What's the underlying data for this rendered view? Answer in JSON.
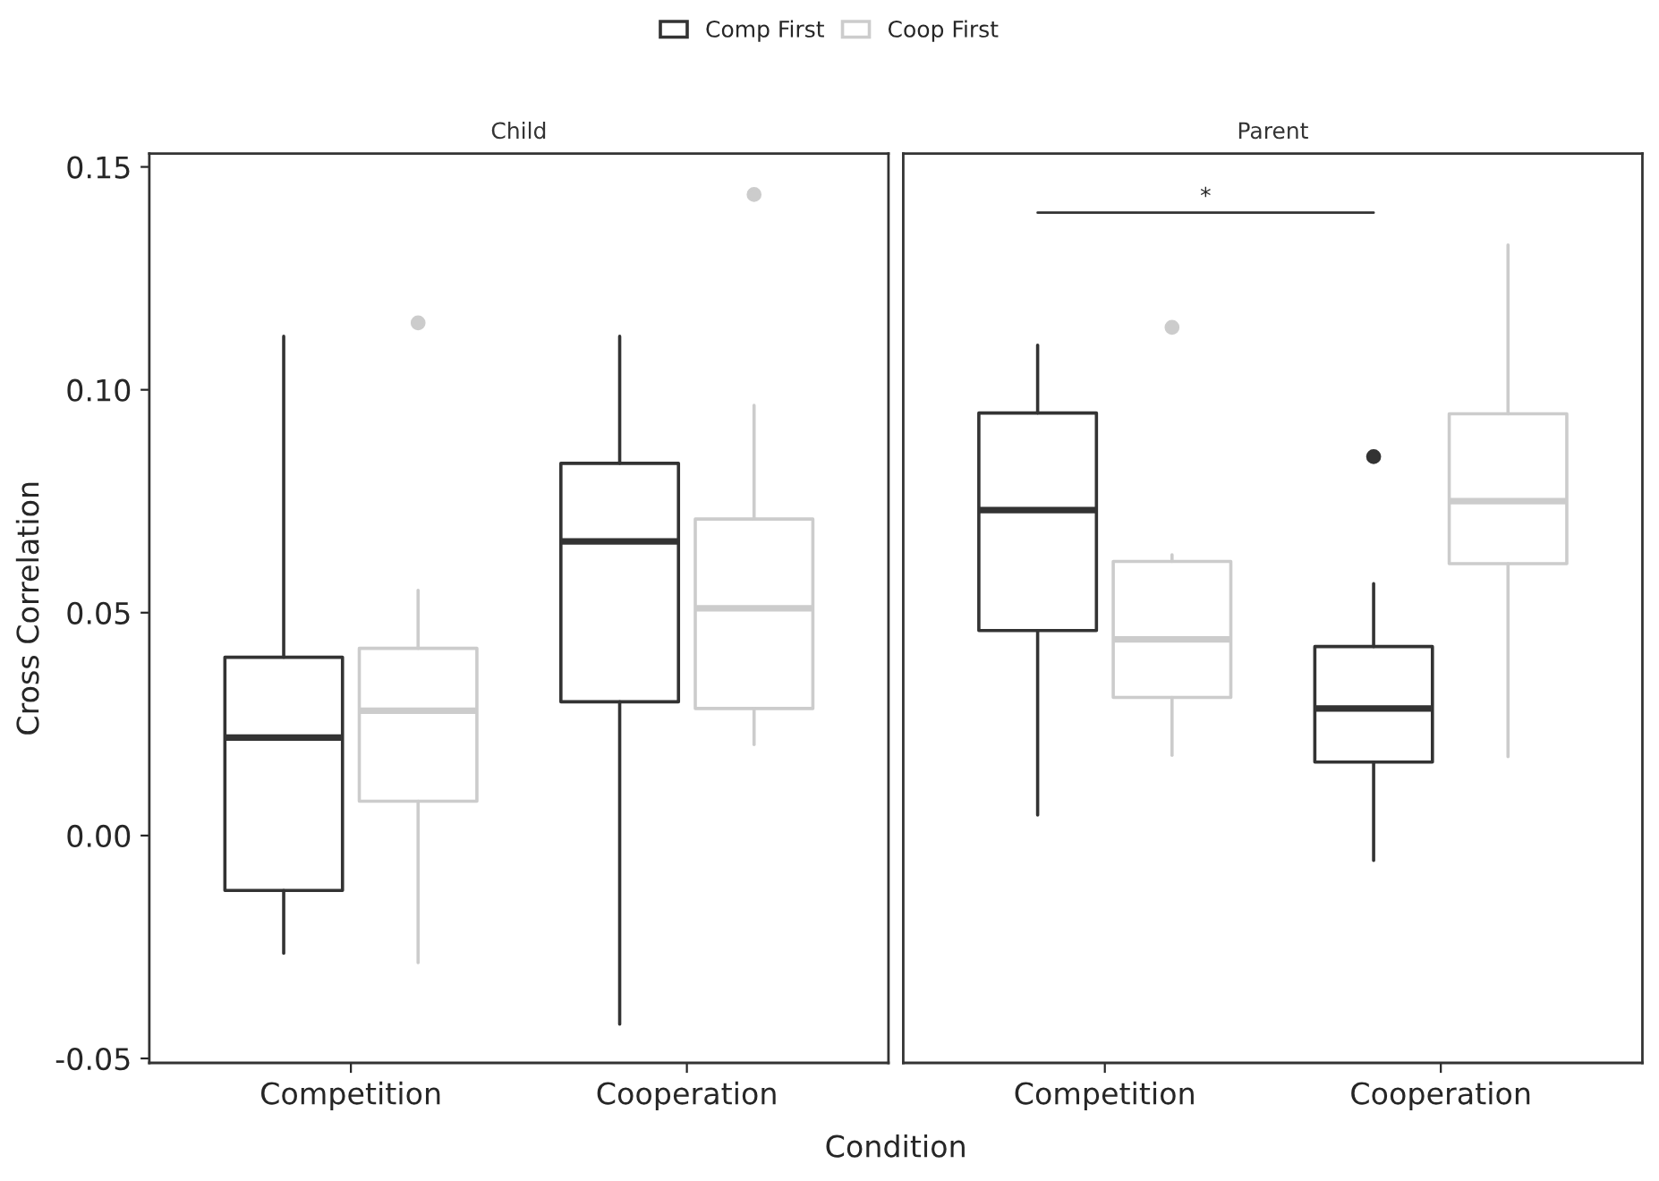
{
  "chart_data": [
    {
      "type": "box",
      "title": "Child",
      "xlabel": "Condition",
      "ylabel": "Cross Correlation",
      "categories": [
        "Competition",
        "Cooperation"
      ],
      "ylim": [
        -0.051,
        0.153
      ],
      "yticks": [
        {
          "value": -0.05,
          "label": "-0.05"
        },
        {
          "value": 0,
          "label": "0.00"
        },
        {
          "value": 0.05,
          "label": "0.05"
        },
        {
          "value": 0.1,
          "label": "0.10"
        },
        {
          "value": 0.15,
          "label": "0.15"
        }
      ],
      "grid": false,
      "legend": "top",
      "series": [
        {
          "name": "Comp First",
          "color": "#333333",
          "boxes": [
            {
              "low": -0.0264,
              "q1": -0.0123,
              "median": 0.022,
              "q3": 0.04,
              "high": 0.112
            },
            {
              "low": -0.0423,
              "q1": 0.03,
              "median": 0.066,
              "q3": 0.0835,
              "high": 0.112
            }
          ]
        },
        {
          "name": "Coop First",
          "color": "#cccccc",
          "boxes": [
            {
              "low": -0.0285,
              "q1": 0.0077,
              "median": 0.028,
              "q3": 0.042,
              "high": 0.055,
              "outliers": [
                0.115
              ]
            },
            {
              "low": 0.0204,
              "q1": 0.0285,
              "median": 0.051,
              "q3": 0.071,
              "high": 0.0965,
              "outliers": [
                0.1438
              ]
            }
          ]
        }
      ]
    },
    {
      "type": "box",
      "title": "Parent",
      "categories": [
        "Competition",
        "Cooperation"
      ],
      "ylim": [
        -0.051,
        0.153
      ],
      "tick_labels": "x",
      "grid": false,
      "annotations": [
        "*"
      ],
      "series": [
        {
          "name": "Comp First",
          "color": "#333333",
          "boxes": [
            {
              "low": 0.0046,
              "q1": 0.046,
              "median": 0.073,
              "q3": 0.0948,
              "high": 0.11
            },
            {
              "low": -0.0056,
              "q1": 0.0165,
              "median": 0.0285,
              "q3": 0.0424,
              "high": 0.0565,
              "outliers": [
                0.085
              ]
            }
          ]
        },
        {
          "name": "Coop First",
          "color": "#cccccc",
          "boxes": [
            {
              "low": 0.018,
              "q1": 0.031,
              "median": 0.044,
              "q3": 0.0615,
              "high": 0.063,
              "outliers": [
                0.114
              ]
            },
            {
              "low": 0.0177,
              "q1": 0.061,
              "median": 0.075,
              "q3": 0.0946,
              "high": 0.1325
            }
          ]
        }
      ]
    }
  ]
}
